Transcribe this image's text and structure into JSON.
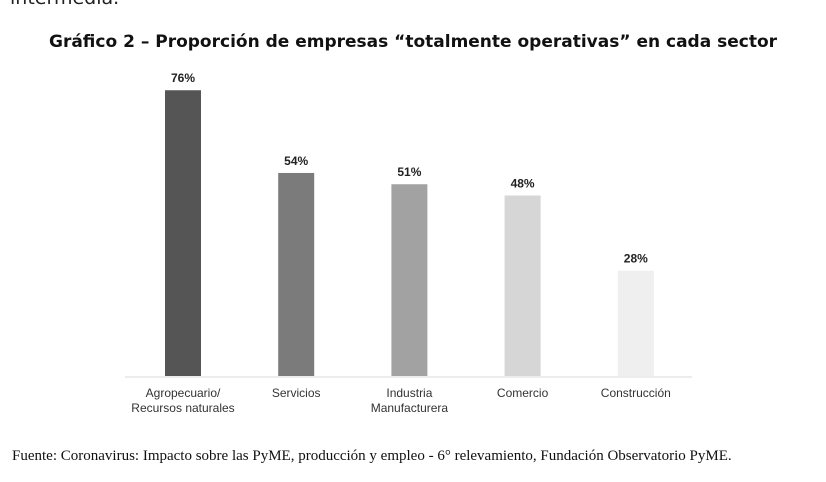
{
  "document": {
    "preceding_text": "intermedia.",
    "source": "Fuente: Coronavirus: Impacto sobre las PyME, producción y empleo - 6° relevamiento, Fundación Observatorio PyME."
  },
  "chart_data": {
    "type": "bar",
    "title": "Gráfico 2 – Proporción de empresas “totalmente operativas” en cada sector",
    "categories": [
      [
        "Agropecuario/",
        "Recursos naturales"
      ],
      [
        "Servicios"
      ],
      [
        "Industria",
        "Manufacturera"
      ],
      [
        "Comercio"
      ],
      [
        "Construcción"
      ]
    ],
    "values": [
      76,
      54,
      51,
      48,
      28
    ],
    "labels": [
      "76%",
      "54%",
      "51%",
      "48%",
      "28%"
    ],
    "colors": [
      "#555555",
      "#7b7b7b",
      "#a2a2a2",
      "#d6d6d6",
      "#efefef"
    ],
    "ylim": [
      0,
      100
    ],
    "grid": false,
    "xlabel": "",
    "ylabel": ""
  }
}
